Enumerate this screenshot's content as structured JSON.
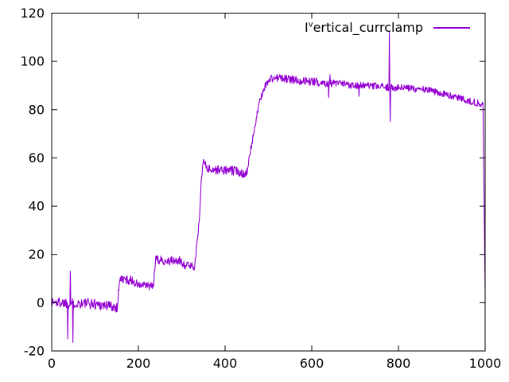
{
  "colors": {
    "background": "#ffffff",
    "axis": "#000000",
    "tick_label": "#000000",
    "series_line": "#9400d3"
  },
  "chart_data": {
    "type": "line",
    "title": "",
    "xlabel": "",
    "ylabel": "",
    "xlim": [
      0,
      1000
    ],
    "ylim": [
      -20,
      120
    ],
    "xticks": [
      0,
      200,
      400,
      600,
      800,
      1000
    ],
    "yticks": [
      -20,
      0,
      20,
      40,
      60,
      80,
      100,
      120
    ],
    "grid": false,
    "legend_position": "top-right-inside",
    "series": [
      {
        "name": "I^vertical_currclamp",
        "label_parts": [
          "I",
          "v",
          "ertical_currclamp"
        ],
        "color": "#9400d3",
        "noise_seed": 1337,
        "keypoints": [
          [
            0,
            0.3,
            2.3
          ],
          [
            100,
            -0.5,
            2.3
          ],
          [
            152,
            -1.8,
            2.3
          ],
          [
            156,
            9.8,
            1.9
          ],
          [
            185,
            9.3,
            1.9
          ],
          [
            200,
            7.2,
            1.7
          ],
          [
            235,
            6.8,
            1.7
          ],
          [
            239,
            17.6,
            1.9
          ],
          [
            298,
            17.2,
            1.9
          ],
          [
            308,
            15.6,
            1.7
          ],
          [
            330,
            15.2,
            1.5
          ],
          [
            340,
            33,
            1.3
          ],
          [
            345,
            50,
            1.3
          ],
          [
            350,
            59.5,
            1.5
          ],
          [
            356,
            57,
            1.8
          ],
          [
            362,
            55.3,
            1.9
          ],
          [
            428,
            54.6,
            1.9
          ],
          [
            448,
            53.2,
            1.8
          ],
          [
            452,
            55.5,
            1.5
          ],
          [
            462,
            66,
            1.4
          ],
          [
            470,
            74.5,
            1.4
          ],
          [
            478,
            82,
            1.4
          ],
          [
            487,
            87.5,
            1.5
          ],
          [
            495,
            90.8,
            1.5
          ],
          [
            505,
            92.8,
            1.7
          ],
          [
            520,
            93.2,
            1.7
          ],
          [
            560,
            92.3,
            1.7
          ],
          [
            620,
            91.3,
            1.6
          ],
          [
            700,
            90.2,
            1.5
          ],
          [
            780,
            89.2,
            1.5
          ],
          [
            850,
            88.6,
            1.5
          ],
          [
            880,
            87.6,
            1.4
          ],
          [
            920,
            85.8,
            1.4
          ],
          [
            960,
            83.8,
            1.4
          ],
          [
            995,
            82.2,
            1.4
          ],
          [
            1000,
            5,
            0
          ]
        ],
        "spikes": [
          [
            37,
            -15
          ],
          [
            43,
            13
          ],
          [
            49,
            -16.5
          ],
          [
            639,
            85
          ],
          [
            642,
            94.5
          ],
          [
            709,
            85.5
          ],
          [
            779,
            112
          ],
          [
            781,
            75.2
          ]
        ]
      }
    ]
  }
}
